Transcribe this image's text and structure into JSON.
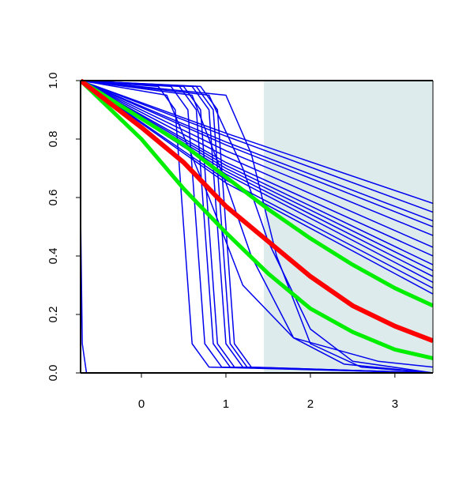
{
  "chart_data": {
    "type": "line",
    "xlim": [
      -0.72,
      3.45
    ],
    "ylim": [
      0,
      1
    ],
    "xticks": [
      0,
      1,
      2,
      3
    ],
    "yticks": [
      {
        "value": 0,
        "label": "0.0"
      },
      0.2,
      0.4,
      0.6,
      0.8,
      {
        "value": 1,
        "label": "1.0"
      }
    ],
    "shade": {
      "color": "#deebec",
      "xlim": [
        1.45,
        3.45
      ],
      "ylim": [
        0,
        1
      ]
    },
    "series": [
      {
        "color": "#0000ee",
        "width": 1.5,
        "x": [
          -0.72,
          1,
          3.45
        ],
        "values": [
          1,
          0.82,
          0.58
        ]
      },
      {
        "color": "#0000ee",
        "width": 1.5,
        "x": [
          -0.72,
          1,
          3.45
        ],
        "values": [
          1,
          0.81,
          0.55
        ]
      },
      {
        "color": "#0000ee",
        "width": 1.5,
        "x": [
          -0.72,
          1,
          3.45
        ],
        "values": [
          1,
          0.79,
          0.52
        ]
      },
      {
        "color": "#0000ee",
        "width": 1.5,
        "x": [
          -0.72,
          1,
          3.45
        ],
        "values": [
          1,
          0.78,
          0.5
        ]
      },
      {
        "color": "#0000ee",
        "width": 1.5,
        "x": [
          -0.72,
          1,
          3.45
        ],
        "values": [
          1,
          0.76,
          0.47
        ]
      },
      {
        "color": "#0000ee",
        "width": 1.5,
        "x": [
          -0.72,
          1,
          3.45
        ],
        "values": [
          1,
          0.74,
          0.43
        ]
      },
      {
        "color": "#0000ee",
        "width": 1.5,
        "x": [
          -0.72,
          1,
          3.45
        ],
        "values": [
          1,
          0.72,
          0.4
        ]
      },
      {
        "color": "#0000ee",
        "width": 1.5,
        "x": [
          -0.72,
          1,
          3.45
        ],
        "values": [
          1,
          0.71,
          0.37
        ]
      },
      {
        "color": "#0000ee",
        "width": 1.5,
        "x": [
          -0.72,
          1,
          3.45
        ],
        "values": [
          1,
          0.7,
          0.35
        ]
      },
      {
        "color": "#0000ee",
        "width": 1.5,
        "x": [
          -0.72,
          1,
          3.45
        ],
        "values": [
          1,
          0.69,
          0.33
        ]
      },
      {
        "color": "#0000ee",
        "width": 1.5,
        "x": [
          -0.72,
          1,
          3.45
        ],
        "values": [
          1,
          0.68,
          0.31
        ]
      },
      {
        "color": "#0000ee",
        "width": 1.5,
        "x": [
          -0.72,
          1,
          3.45
        ],
        "values": [
          1,
          0.66,
          0.29
        ]
      },
      {
        "color": "#0000ee",
        "width": 1.5,
        "x": [
          -0.72,
          1,
          3.45
        ],
        "values": [
          1,
          0.65,
          0.27
        ]
      },
      {
        "color": "#0000ee",
        "width": 1.5,
        "x": [
          -0.72,
          0.2,
          0.4,
          0.5,
          0.6,
          0.8,
          3.45
        ],
        "values": [
          1,
          0.98,
          0.9,
          0.5,
          0.1,
          0.02,
          0
        ]
      },
      {
        "color": "#0000ee",
        "width": 1.5,
        "x": [
          -0.72,
          0.35,
          0.55,
          0.65,
          0.75,
          0.95,
          3.45
        ],
        "values": [
          1,
          0.98,
          0.9,
          0.5,
          0.1,
          0.02,
          0
        ]
      },
      {
        "color": "#0000ee",
        "width": 1.5,
        "x": [
          -0.72,
          0.45,
          0.65,
          0.75,
          0.85,
          1.05,
          3.45
        ],
        "values": [
          1,
          0.98,
          0.9,
          0.5,
          0.1,
          0.02,
          0
        ]
      },
      {
        "color": "#0000ee",
        "width": 1.5,
        "x": [
          -0.72,
          0.5,
          0.7,
          0.8,
          0.9,
          1.1,
          3.45
        ],
        "values": [
          1,
          0.98,
          0.9,
          0.5,
          0.1,
          0.02,
          0
        ]
      },
      {
        "color": "#0000ee",
        "width": 1.5,
        "x": [
          -0.72,
          0.6,
          0.8,
          0.9,
          1.0,
          1.2,
          3.45
        ],
        "values": [
          1,
          0.98,
          0.9,
          0.5,
          0.1,
          0.02,
          0
        ]
      },
      {
        "color": "#0000ee",
        "width": 1.5,
        "x": [
          -0.72,
          0.65,
          0.85,
          0.95,
          1.05,
          1.25,
          3.45
        ],
        "values": [
          1,
          0.98,
          0.9,
          0.5,
          0.1,
          0.02,
          0
        ]
      },
      {
        "color": "#0000ee",
        "width": 1.5,
        "x": [
          -0.72,
          0.7,
          0.9,
          1.0,
          1.1,
          1.3,
          3.45
        ],
        "values": [
          1,
          0.98,
          0.9,
          0.5,
          0.1,
          0.02,
          0
        ]
      },
      {
        "color": "#0000ee",
        "width": 1.5,
        "x": [
          -0.72,
          0.8,
          1.2,
          1.5,
          2,
          2.5,
          3.45
        ],
        "values": [
          1,
          0.95,
          0.7,
          0.45,
          0.15,
          0.04,
          0
        ]
      },
      {
        "color": "#0000ee",
        "width": 1.5,
        "x": [
          -0.72,
          0.6,
          1.0,
          1.3,
          1.8,
          2.4,
          3.45
        ],
        "values": [
          1,
          0.95,
          0.65,
          0.4,
          0.12,
          0.03,
          0
        ]
      },
      {
        "color": "#0000ee",
        "width": 1.5,
        "x": [
          -0.72,
          1.0,
          1.3,
          1.6,
          2.0,
          2.6,
          3.45
        ],
        "values": [
          1,
          0.95,
          0.75,
          0.4,
          0.1,
          0.02,
          0
        ]
      },
      {
        "color": "#0000ee",
        "width": 1.5,
        "x": [
          -0.72,
          0.3,
          0.8,
          1.2,
          1.8,
          2.8,
          3.45
        ],
        "values": [
          1,
          0.95,
          0.6,
          0.3,
          0.12,
          0.04,
          0.02
        ]
      },
      {
        "color": "#0000ee",
        "width": 1.5,
        "x": [
          -0.72,
          -0.7,
          -0.65,
          3.45
        ],
        "values": [
          0.55,
          0.1,
          0,
          0
        ]
      },
      {
        "color": "#00ee00",
        "width": 5,
        "x": [
          -0.72,
          0,
          0.5,
          1,
          1.5,
          2,
          2.5,
          3,
          3.45
        ],
        "values": [
          1,
          0.87,
          0.78,
          0.67,
          0.56,
          0.46,
          0.37,
          0.29,
          0.23
        ]
      },
      {
        "color": "#00ee00",
        "width": 5,
        "x": [
          -0.72,
          0,
          0.5,
          1,
          1.5,
          2,
          2.5,
          3,
          3.45
        ],
        "values": [
          1,
          0.8,
          0.63,
          0.48,
          0.34,
          0.22,
          0.14,
          0.08,
          0.05
        ]
      },
      {
        "color": "#ff0000",
        "width": 6,
        "x": [
          -0.72,
          0,
          0.5,
          1,
          1.5,
          2,
          2.5,
          3,
          3.45
        ],
        "values": [
          1,
          0.84,
          0.72,
          0.57,
          0.45,
          0.33,
          0.23,
          0.16,
          0.11
        ]
      }
    ]
  }
}
